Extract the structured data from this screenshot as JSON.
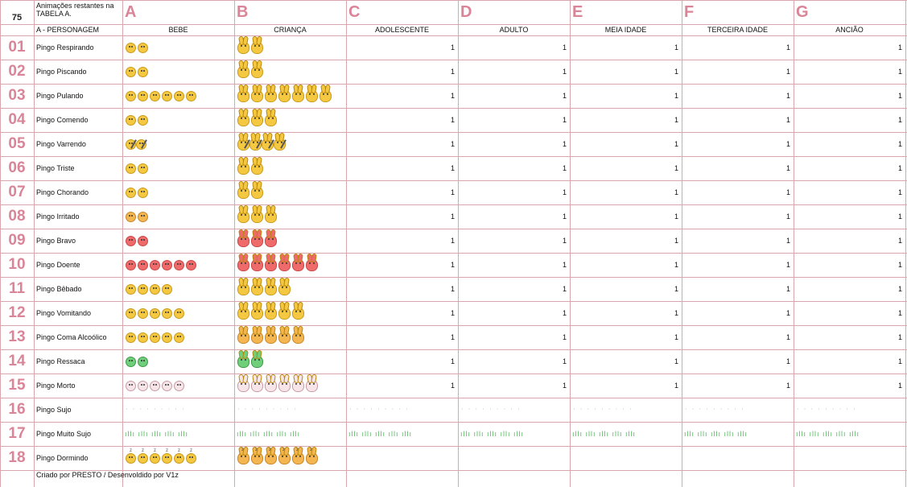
{
  "corner_value": "75",
  "note_text": "Animações restantes na TABELA A.",
  "columns": [
    {
      "letter": "A",
      "header": "BEBE"
    },
    {
      "letter": "B",
      "header": "CRIANÇA"
    },
    {
      "letter": "C",
      "header": "ADOLESCENTE"
    },
    {
      "letter": "D",
      "header": "ADULTO"
    },
    {
      "letter": "E",
      "header": "MEIA IDADE"
    },
    {
      "letter": "F",
      "header": "TERCEIRA IDADE"
    },
    {
      "letter": "G",
      "header": "ANCIÃO"
    }
  ],
  "name_header": "A - PERSONAGEM",
  "rows": [
    {
      "num": "01",
      "name": "Pingo Respirando",
      "values": [
        "1",
        "1",
        "1",
        "1",
        "1"
      ],
      "baby": {
        "count": 2,
        "color": "yellow"
      },
      "kid": {
        "count": 2,
        "color": "yellow"
      }
    },
    {
      "num": "02",
      "name": "Pingo Piscando",
      "values": [
        "1",
        "1",
        "1",
        "1",
        "1"
      ],
      "baby": {
        "count": 2,
        "color": "yellow"
      },
      "kid": {
        "count": 2,
        "color": "yellow"
      }
    },
    {
      "num": "03",
      "name": "Pingo Pulando",
      "values": [
        "1",
        "1",
        "1",
        "1",
        "1"
      ],
      "baby": {
        "count": 6,
        "color": "yellow"
      },
      "kid": {
        "count": 7,
        "color": "yellow"
      }
    },
    {
      "num": "04",
      "name": "Pingo Comendo",
      "values": [
        "1",
        "1",
        "1",
        "1",
        "1"
      ],
      "baby": {
        "count": 2,
        "color": "yellow"
      },
      "kid": {
        "count": 3,
        "color": "yellow"
      }
    },
    {
      "num": "05",
      "name": "Pingo Varrendo",
      "values": [
        "1",
        "1",
        "1",
        "1",
        "1"
      ],
      "baby": {
        "count": 2,
        "color": "yellow",
        "broom": true
      },
      "kid": {
        "count": 4,
        "color": "yellow",
        "broom": true
      }
    },
    {
      "num": "06",
      "name": "Pingo Triste",
      "values": [
        "1",
        "1",
        "1",
        "1",
        "1"
      ],
      "baby": {
        "count": 2,
        "color": "yellow"
      },
      "kid": {
        "count": 2,
        "color": "yellow"
      }
    },
    {
      "num": "07",
      "name": "Pingo Chorando",
      "values": [
        "1",
        "1",
        "1",
        "1",
        "1"
      ],
      "baby": {
        "count": 2,
        "color": "yellow"
      },
      "kid": {
        "count": 2,
        "color": "yellow"
      }
    },
    {
      "num": "08",
      "name": "Pingo Irritado",
      "values": [
        "1",
        "1",
        "1",
        "1",
        "1"
      ],
      "baby": {
        "count": 2,
        "color": "orange"
      },
      "kid": {
        "count": 3,
        "color": "yellow"
      }
    },
    {
      "num": "09",
      "name": "Pingo Bravo",
      "values": [
        "1",
        "1",
        "1",
        "1",
        "1"
      ],
      "baby": {
        "count": 2,
        "color": "red"
      },
      "kid": {
        "count": 3,
        "color": "red"
      }
    },
    {
      "num": "10",
      "name": "Pingo Doente",
      "values": [
        "1",
        "1",
        "1",
        "1",
        "1"
      ],
      "baby": {
        "count": 6,
        "color": "red"
      },
      "kid": {
        "count": 6,
        "color": "red"
      }
    },
    {
      "num": "11",
      "name": "Pingo Bêbado",
      "values": [
        "1",
        "1",
        "1",
        "1",
        "1"
      ],
      "baby": {
        "count": 4,
        "color": "yellow"
      },
      "kid": {
        "count": 4,
        "color": "yellow"
      }
    },
    {
      "num": "12",
      "name": "Pingo Vomitando",
      "values": [
        "1",
        "1",
        "1",
        "1",
        "1"
      ],
      "baby": {
        "count": 5,
        "color": "yellow"
      },
      "kid": {
        "count": 5,
        "color": "yellow"
      }
    },
    {
      "num": "13",
      "name": "Pingo Coma Alcoólico",
      "values": [
        "1",
        "1",
        "1",
        "1",
        "1"
      ],
      "baby": {
        "count": 5,
        "color": "yellow"
      },
      "kid": {
        "count": 5,
        "color": "orange"
      }
    },
    {
      "num": "14",
      "name": "Pingo Ressaca",
      "values": [
        "1",
        "1",
        "1",
        "1",
        "1"
      ],
      "baby": {
        "count": 2,
        "color": "green"
      },
      "kid": {
        "count": 2,
        "color": "green"
      }
    },
    {
      "num": "15",
      "name": "Pingo Morto",
      "values": [
        "1",
        "1",
        "1",
        "1",
        "1"
      ],
      "baby": {
        "count": 5,
        "color": "pale"
      },
      "kid": {
        "count": 6,
        "color": "pale"
      }
    },
    {
      "num": "16",
      "name": "Pingo Sujo",
      "values": [],
      "dirt": "dots"
    },
    {
      "num": "17",
      "name": "Pingo Muito Sujo",
      "values": [],
      "dirt": "grass"
    },
    {
      "num": "18",
      "name": "Pingo Dormindo",
      "values": [],
      "baby": {
        "count": 6,
        "color": "yellow",
        "zzz": true
      },
      "kid": {
        "count": 6,
        "color": "orange",
        "zzz": true
      }
    }
  ],
  "dirt_glyphs": {
    "dots": "⋅ ⋅ ⋅ ⋅ ⋅ ⋅ ⋅ ⋅ ⋅",
    "grass": "ıllı ıllı ıllı ıllı ıllı"
  },
  "footer_text": "Criado por PRESTO / Desenvoldido por V1z"
}
